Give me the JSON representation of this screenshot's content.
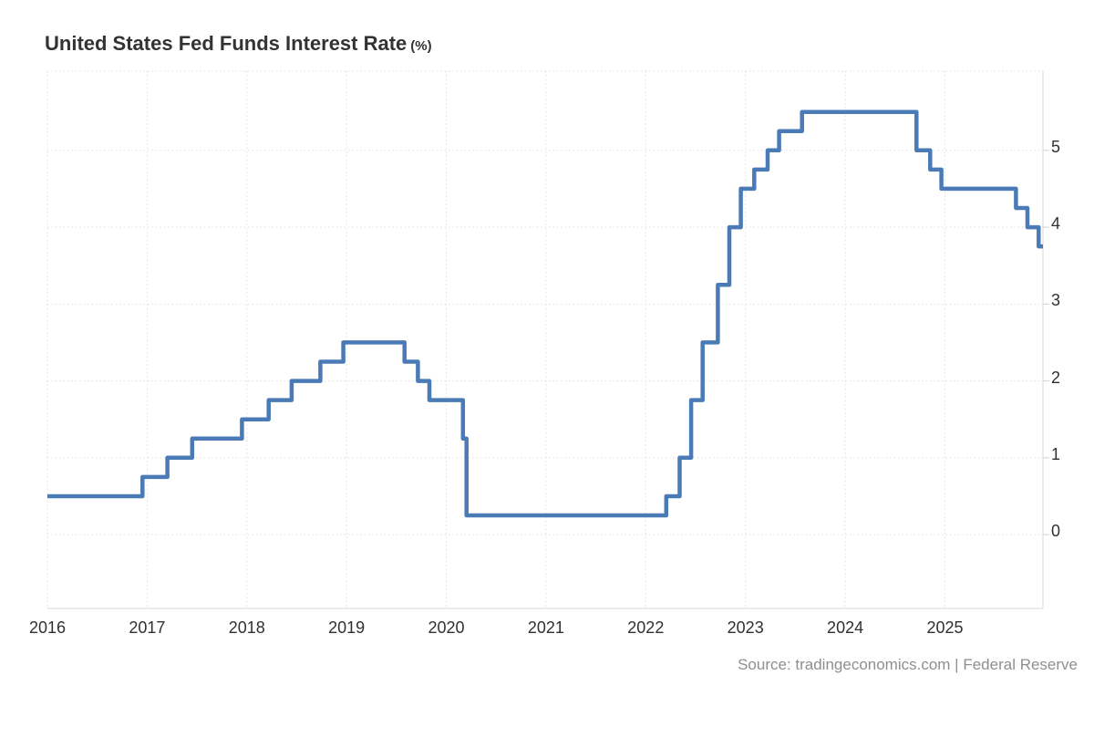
{
  "header": {
    "title": "United States Fed Funds Interest Rate",
    "title_unit": "(%)"
  },
  "source": {
    "text": "Source: tradingeconomics.com | Federal Reserve"
  },
  "colors": {
    "line": "#4a7bb7",
    "grid": "#e0e0e0",
    "axis": "#d8d8d8",
    "tick": "#cfcfcf",
    "tick_label": "#303030",
    "title": "#333333",
    "source_text": "#8f8f8f",
    "background": "#ffffff"
  },
  "chart_data": {
    "type": "line",
    "subtype": "step-after",
    "title": "United States Fed Funds Interest Rate (%)",
    "ylabel": "",
    "xlabel": "",
    "legend": "none",
    "grid": "dotted",
    "x_axis": {
      "ticks": [
        2016,
        2017,
        2018,
        2019,
        2020,
        2021,
        2022,
        2023,
        2024,
        2025
      ],
      "range_years": [
        2016.0,
        2025.983
      ]
    },
    "y_axis": {
      "ticks": [
        0,
        1,
        2,
        3,
        4,
        5
      ],
      "range": [
        -0.96,
        6.03
      ],
      "side": "right"
    },
    "series": [
      {
        "name": "Fed Funds Interest Rate (%)",
        "steps": [
          [
            "2016-01-01",
            0.5
          ],
          [
            "2016-12-15",
            0.75
          ],
          [
            "2017-03-16",
            1.0
          ],
          [
            "2017-06-15",
            1.25
          ],
          [
            "2017-12-14",
            1.5
          ],
          [
            "2018-03-22",
            1.75
          ],
          [
            "2018-06-14",
            2.0
          ],
          [
            "2018-09-27",
            2.25
          ],
          [
            "2018-12-20",
            2.5
          ],
          [
            "2019-08-01",
            2.25
          ],
          [
            "2019-09-19",
            2.0
          ],
          [
            "2019-10-31",
            1.75
          ],
          [
            "2020-03-03",
            1.25
          ],
          [
            "2020-03-16",
            0.25
          ],
          [
            "2022-03-17",
            0.5
          ],
          [
            "2022-05-05",
            1.0
          ],
          [
            "2022-06-16",
            1.75
          ],
          [
            "2022-07-28",
            2.5
          ],
          [
            "2022-09-22",
            3.25
          ],
          [
            "2022-11-03",
            4.0
          ],
          [
            "2022-12-15",
            4.5
          ],
          [
            "2023-02-02",
            4.75
          ],
          [
            "2023-03-23",
            5.0
          ],
          [
            "2023-05-04",
            5.25
          ],
          [
            "2023-07-27",
            5.5
          ],
          [
            "2024-09-19",
            5.0
          ],
          [
            "2024-11-08",
            4.75
          ],
          [
            "2024-12-19",
            4.5
          ],
          [
            "2025-09-18",
            4.25
          ],
          [
            "2025-10-30",
            4.0
          ],
          [
            "2025-12-10",
            3.75
          ]
        ],
        "last_value": 3.75
      }
    ]
  }
}
